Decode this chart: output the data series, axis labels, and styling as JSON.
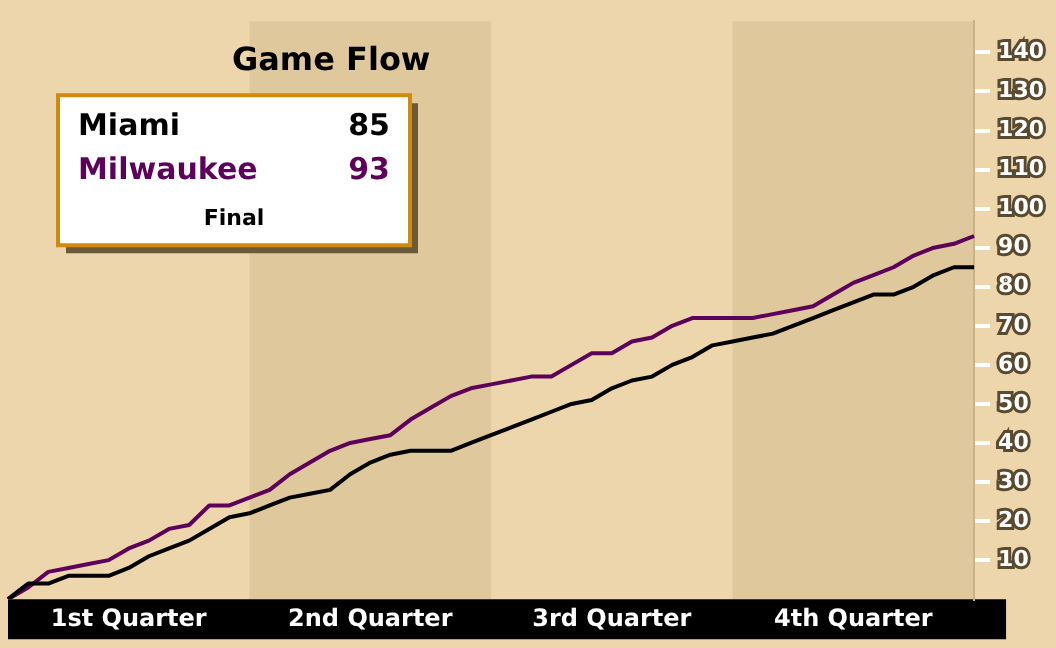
{
  "chart_data": {
    "type": "line",
    "title": "Game Flow",
    "categories": [
      null,
      null,
      null,
      null,
      null,
      null,
      "1st Quarter",
      null,
      null,
      null,
      null,
      null,
      null,
      null,
      null,
      null,
      null,
      null,
      "2nd Quarter",
      null,
      null,
      null,
      null,
      null,
      null,
      null,
      null,
      null,
      null,
      null,
      "3rd Quarter",
      null,
      null,
      null,
      null,
      null,
      null,
      null,
      null,
      null,
      null,
      null,
      "4th Quarter",
      null,
      null,
      null,
      null,
      null,
      null
    ],
    "ylim": [
      0,
      148
    ],
    "yticks": [
      10,
      20,
      30,
      40,
      50,
      60,
      70,
      80,
      90,
      100,
      110,
      120,
      130,
      140
    ],
    "legend": "top left",
    "annotations": [
      "85",
      "93",
      "Final"
    ],
    "series": [
      {
        "name": "Miami",
        "color": "#000000",
        "values": [
          0,
          4,
          4,
          6,
          6,
          6,
          8,
          11,
          13,
          15,
          18,
          21,
          22,
          24,
          26,
          27,
          28,
          32,
          35,
          37,
          38,
          38,
          38,
          40,
          42,
          44,
          46,
          48,
          50,
          51,
          54,
          56,
          57,
          60,
          62,
          65,
          66,
          67,
          68,
          70,
          72,
          74,
          76,
          78,
          78,
          80,
          83,
          85,
          85
        ]
      },
      {
        "name": "Milwaukee",
        "color": "#5c005c",
        "values": [
          0,
          3,
          7,
          8,
          9,
          10,
          13,
          15,
          18,
          19,
          24,
          24,
          26,
          28,
          32,
          35,
          38,
          40,
          41,
          42,
          46,
          49,
          52,
          54,
          55,
          56,
          57,
          57,
          60,
          63,
          63,
          66,
          67,
          70,
          72,
          72,
          72,
          72,
          73,
          74,
          75,
          78,
          81,
          83,
          85,
          88,
          90,
          91,
          93
        ]
      }
    ]
  }
}
